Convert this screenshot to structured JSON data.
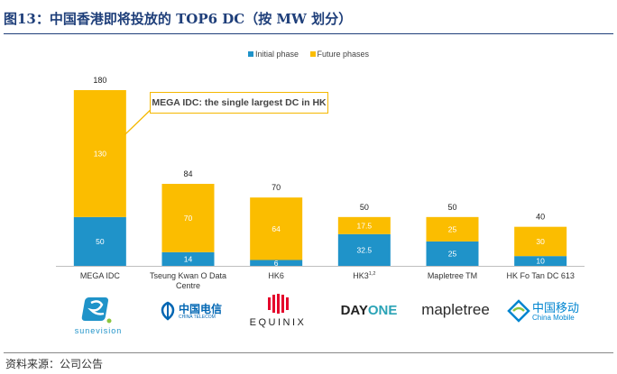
{
  "figure": {
    "title": "图13：中国香港即将投放的 TOP6 DC（按 MW 划分）",
    "source": "资料来源：公司公告"
  },
  "annotation": "MEGA IDC: the single largest DC in HK",
  "colors": {
    "initial": "#1f93c9",
    "future": "#fbbd00"
  },
  "logos": {
    "sunevision": "sunevision",
    "china_telecom_cn": "中国电信",
    "china_telecom_en": "CHINA TELECOM",
    "equinix": "EQUINIX",
    "dayone_day": "DAY",
    "dayone_one": "ONE",
    "mapletree": "mapletree",
    "china_mobile_cn": "中国移动",
    "china_mobile_en": "China Mobile"
  },
  "chart_data": {
    "type": "bar",
    "stacked": true,
    "categories": [
      "MEGA IDC",
      "Tseung Kwan O Data Centre",
      "HK6",
      "HK3",
      "Mapletree TM",
      "HK Fo Tan DC 613"
    ],
    "category_superscripts": [
      "",
      "",
      "",
      "1,2",
      "",
      ""
    ],
    "series": [
      {
        "name": "Initial phase",
        "values": [
          50,
          14,
          6,
          32.5,
          25,
          10
        ],
        "labels": [
          "50",
          "14",
          "6",
          "32.5",
          "25",
          "10"
        ]
      },
      {
        "name": "Future phases",
        "values": [
          130,
          70,
          64,
          17.5,
          25,
          30
        ],
        "labels": [
          "130",
          "70",
          "64",
          "17.5",
          "25",
          "30"
        ]
      }
    ],
    "totals": [
      180,
      84,
      70,
      50,
      50,
      40
    ],
    "ylim": [
      0,
      180
    ],
    "grid": false,
    "legend_position": "top-center",
    "xlabel": "",
    "ylabel": ""
  }
}
